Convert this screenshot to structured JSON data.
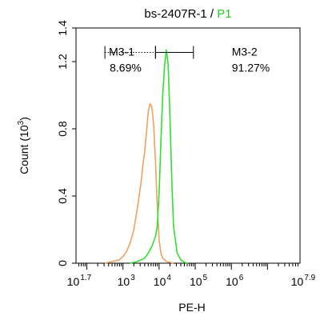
{
  "chart_data": {
    "type": "line",
    "title": {
      "prefix": "bs-2407R-1",
      "separator": " / ",
      "highlight": "P1",
      "highlight_color": "#22cc22"
    },
    "xlabel": "PE-H",
    "ylabel": {
      "text": "Count",
      "unit_prefix": "(10",
      "unit_exp": "3",
      "unit_suffix": ")"
    },
    "x_scale": "log",
    "xlim": [
      1.7,
      7.9
    ],
    "ylim": [
      0,
      1.4
    ],
    "x_ticks": [
      {
        "value": 1.7,
        "base": "10",
        "exp": "1.7"
      },
      {
        "value": 3,
        "base": "10",
        "exp": "3"
      },
      {
        "value": 4,
        "base": "10",
        "exp": "4"
      },
      {
        "value": 5,
        "base": "10",
        "exp": "5"
      },
      {
        "value": 6,
        "base": "10",
        "exp": "6"
      },
      {
        "value": 7.9,
        "base": "10",
        "exp": "7.9"
      }
    ],
    "y_ticks": [
      "0",
      "0.4",
      "0.8",
      "1.2",
      "1.4"
    ],
    "y_tick_values": [
      0,
      0.4,
      0.8,
      1.2,
      1.4
    ],
    "grid": false,
    "series": [
      {
        "color": "#f0a060",
        "x": [
          2.5,
          2.7,
          2.9,
          3.0,
          3.1,
          3.2,
          3.3,
          3.4,
          3.5,
          3.55,
          3.6,
          3.65,
          3.7,
          3.75,
          3.8,
          3.85,
          3.9,
          3.95,
          4.0,
          4.05,
          4.1,
          4.15,
          4.2,
          4.3,
          4.4
        ],
        "y": [
          0,
          0.01,
          0.02,
          0.04,
          0.07,
          0.12,
          0.2,
          0.33,
          0.48,
          0.58,
          0.66,
          0.78,
          0.9,
          0.95,
          0.93,
          0.82,
          0.6,
          0.34,
          0.14,
          0.06,
          0.03,
          0.02,
          0.01,
          0.005,
          0
        ]
      },
      {
        "color": "#33dd33",
        "x": [
          3.2,
          3.4,
          3.6,
          3.7,
          3.8,
          3.9,
          3.95,
          4.0,
          4.05,
          4.1,
          4.15,
          4.2,
          4.25,
          4.3,
          4.35,
          4.4,
          4.5,
          4.6,
          4.7,
          4.8
        ],
        "y": [
          0,
          0.01,
          0.03,
          0.06,
          0.1,
          0.16,
          0.22,
          0.42,
          0.72,
          1.0,
          1.17,
          1.27,
          1.18,
          0.88,
          0.5,
          0.22,
          0.06,
          0.02,
          0.005,
          0
        ]
      }
    ],
    "gates": [
      {
        "name": "M3-1",
        "percent": "8.69%",
        "from": 2.5,
        "to": 3.9,
        "line_style": "dotted"
      },
      {
        "name": "M3-2",
        "percent": "91.27%",
        "from": 3.9,
        "to": 4.95,
        "line_style": "solid"
      }
    ]
  }
}
